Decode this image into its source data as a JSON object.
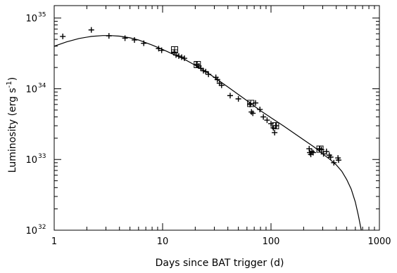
{
  "chart_data": {
    "type": "scatter",
    "xlabel": "Days since BAT trigger (d)",
    "ylabel_base": "Luminosity (erg s",
    "ylabel_exp": "-1",
    "ylabel_end": ")",
    "xscale": "log",
    "yscale": "log",
    "xlim": [
      1,
      1000
    ],
    "ylim": [
      1e+32,
      1.5e+35
    ],
    "grid": false,
    "x_ticks": [
      {
        "value": 1,
        "label": "1"
      },
      {
        "value": 10,
        "label": "10"
      },
      {
        "value": 100,
        "label": "100"
      },
      {
        "value": 1000,
        "label": "1000"
      }
    ],
    "y_ticks": [
      {
        "value": 1e+32,
        "base": "10",
        "exp": "32"
      },
      {
        "value": 1e+33,
        "base": "10",
        "exp": "33"
      },
      {
        "value": 1e+34,
        "base": "10",
        "exp": "34"
      },
      {
        "value": 1e+35,
        "base": "10",
        "exp": "35"
      }
    ],
    "series": [
      {
        "marker": "cross",
        "points": [
          [
            1.2,
            5.5e+34
          ],
          [
            2.2,
            6.8e+34
          ],
          [
            3.2,
            5.6e+34
          ],
          [
            4.5,
            5.2e+34
          ],
          [
            5.5,
            4.9e+34
          ],
          [
            6.7,
            4.4e+34
          ],
          [
            9.2,
            3.7e+34
          ],
          [
            9.8,
            3.5e+34
          ],
          [
            12.8,
            3.3e+34
          ],
          [
            13.3,
            3e+34
          ],
          [
            14.1,
            2.9e+34
          ],
          [
            15.0,
            2.8e+34
          ],
          [
            15.9,
            2.7e+34
          ],
          [
            20.5,
            2.2e+34
          ],
          [
            21.6,
            2.1e+34
          ],
          [
            22.5,
            1.95e+34
          ],
          [
            23.8,
            1.8e+34
          ],
          [
            25.0,
            1.75e+34
          ],
          [
            26.5,
            1.6e+34
          ],
          [
            31.0,
            1.45e+34
          ],
          [
            32.0,
            1.35e+34
          ],
          [
            33.5,
            1.2e+34
          ],
          [
            35.0,
            1.12e+34
          ],
          [
            42.0,
            8e+33
          ],
          [
            50.0,
            7.2e+33
          ],
          [
            64.0,
            6e+33
          ],
          [
            66.0,
            4.7e+33
          ],
          [
            68.0,
            4.5e+33
          ],
          [
            72.0,
            6.3e+33
          ],
          [
            79.0,
            5.1e+33
          ],
          [
            85.0,
            4e+33
          ],
          [
            92.0,
            3.6e+33
          ],
          [
            100.0,
            3.2e+33
          ],
          [
            105.0,
            2.8e+33
          ],
          [
            108.0,
            2.4e+33
          ],
          [
            112.0,
            3e+33
          ],
          [
            225.0,
            1.42e+33
          ],
          [
            228.0,
            1.25e+33
          ],
          [
            233.0,
            1.18e+33
          ],
          [
            238.0,
            1.3e+33
          ],
          [
            245.0,
            1.25e+33
          ],
          [
            280.0,
            1.42e+33
          ],
          [
            292.0,
            1.38e+33
          ],
          [
            305.0,
            1.2e+33
          ],
          [
            325.0,
            1.3e+33
          ],
          [
            345.0,
            1.15e+33
          ],
          [
            355.0,
            1.08e+33
          ],
          [
            380.0,
            9e+32
          ],
          [
            415.0,
            1.05e+33
          ],
          [
            420.0,
            9.8e+32
          ]
        ]
      },
      {
        "marker": "box",
        "points": [
          [
            12.9,
            3.55e+34
          ],
          [
            20.9,
            2.2e+34
          ],
          [
            65.0,
            6.2e+33
          ],
          [
            110.0,
            3e+33
          ],
          [
            283.0,
            1.4e+33
          ]
        ]
      },
      {
        "marker": "line",
        "points": [
          [
            1.0,
            4e+34
          ],
          [
            1.3,
            4.6e+34
          ],
          [
            1.7,
            5.15e+34
          ],
          [
            2.2,
            5.5e+34
          ],
          [
            2.8,
            5.65e+34
          ],
          [
            3.3,
            5.65e+34
          ],
          [
            4.0,
            5.55e+34
          ],
          [
            5.0,
            5.25e+34
          ],
          [
            6.0,
            4.9e+34
          ],
          [
            8.0,
            4.15e+34
          ],
          [
            10.0,
            3.6e+34
          ],
          [
            13.0,
            3e+34
          ],
          [
            16.0,
            2.6e+34
          ],
          [
            20.0,
            2.15e+34
          ],
          [
            25.0,
            1.75e+34
          ],
          [
            30.0,
            1.45e+34
          ],
          [
            40.0,
            1.06e+34
          ],
          [
            50.0,
            8.3e+33
          ],
          [
            60.0,
            6.8e+33
          ],
          [
            80.0,
            4.9e+33
          ],
          [
            100.0,
            3.9e+33
          ],
          [
            130.0,
            3e+33
          ],
          [
            160.0,
            2.4e+33
          ],
          [
            200.0,
            1.9e+33
          ],
          [
            250.0,
            1.5e+33
          ],
          [
            300.0,
            1.2e+33
          ],
          [
            350.0,
            1e+33
          ],
          [
            400.0,
            8.4e+32
          ],
          [
            450.0,
            6.8e+32
          ],
          [
            500.0,
            5.2e+32
          ],
          [
            550.0,
            3.8e+32
          ],
          [
            600.0,
            2.5e+32
          ],
          [
            640.0,
            1.6e+32
          ],
          [
            680.0,
            1e+32
          ]
        ]
      }
    ]
  }
}
